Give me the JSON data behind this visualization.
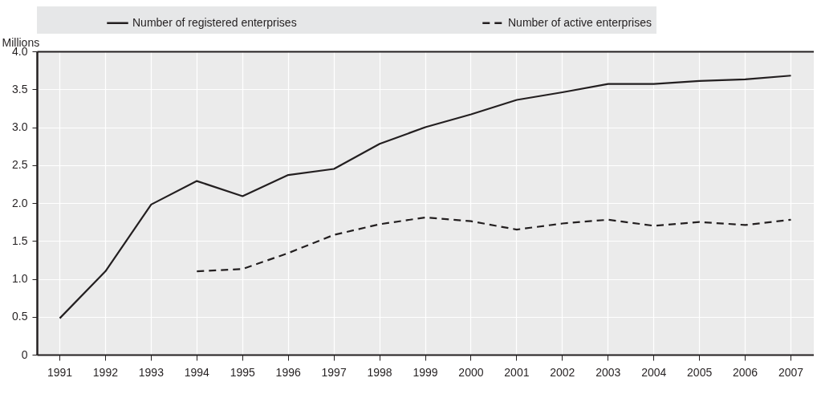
{
  "chart_data": {
    "type": "line",
    "ylabel": "Millions",
    "categories": [
      "1991",
      "1992",
      "1993",
      "1994",
      "1995",
      "1996",
      "1997",
      "1998",
      "1999",
      "2000",
      "2001",
      "2002",
      "2003",
      "2004",
      "2005",
      "2006",
      "2007"
    ],
    "series": [
      {
        "name": "Number of registered enterprises",
        "color": "#231f20",
        "line_style": "solid",
        "values": [
          0.48,
          1.1,
          1.98,
          2.29,
          2.09,
          2.37,
          2.45,
          2.78,
          3.0,
          3.17,
          3.36,
          3.46,
          3.57,
          3.57,
          3.61,
          3.63,
          3.68
        ]
      },
      {
        "name": "Number of active enterprises",
        "color": "#231f20",
        "line_style": "dashed",
        "values": [
          null,
          null,
          null,
          1.1,
          1.13,
          1.34,
          1.58,
          1.72,
          1.81,
          1.76,
          1.65,
          1.73,
          1.78,
          1.7,
          1.75,
          1.71,
          1.78
        ]
      }
    ],
    "ylim": [
      0,
      4
    ],
    "yticks": [
      {
        "value": 0,
        "label": "0"
      },
      0.5,
      {
        "value": 1,
        "label": "1.0"
      },
      1.5,
      {
        "value": 2,
        "label": "2.0"
      },
      2.5,
      {
        "value": 3,
        "label": "3.0"
      },
      3.5,
      {
        "value": 4,
        "label": "4.0"
      }
    ],
    "grid": true,
    "legend": "top",
    "marker": "none"
  }
}
